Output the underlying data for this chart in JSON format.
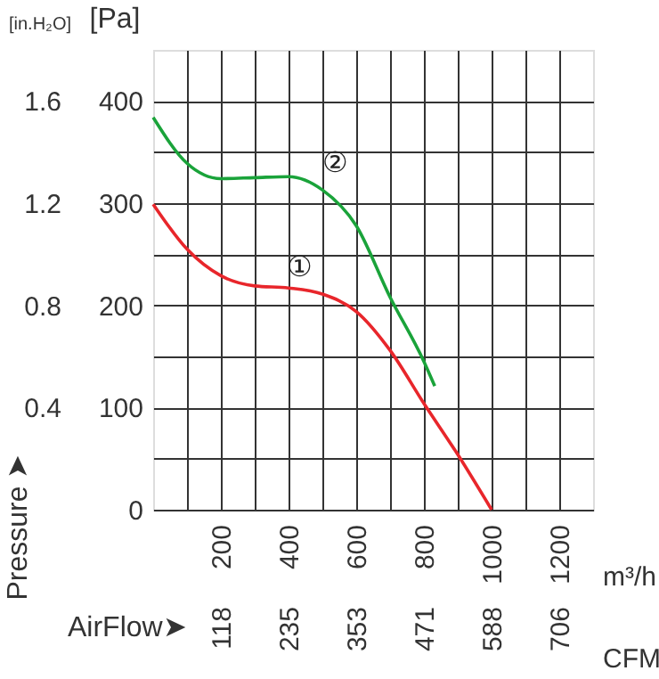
{
  "chart_data": {
    "type": "line",
    "xlabel": "m³/h",
    "ylabel": "[Pa]",
    "y2label": "[in.H₂O]",
    "x2label": "CFM",
    "x": [
      0,
      100,
      200,
      300,
      400,
      500,
      600,
      700,
      800,
      900,
      1000
    ],
    "series": [
      {
        "name": "①",
        "color": "#e8262b",
        "values": [
          299,
          255,
          229,
          219,
          217,
          211,
          194,
          156,
          104,
          54,
          0
        ]
      },
      {
        "name": "②",
        "color": "#1aa33a",
        "x": [
          0,
          100,
          200,
          300,
          400,
          500,
          600,
          700,
          800,
          832
        ],
        "values": [
          384,
          339,
          324,
          325,
          326,
          313,
          278,
          208,
          145,
          121
        ]
      }
    ],
    "xlim": [
      0,
      1300
    ],
    "ylim": [
      0,
      450
    ],
    "y2lim": [
      0,
      1.8
    ],
    "x2lim": [
      0,
      765
    ],
    "xticks": [
      {
        "value": 100,
        "label": null
      },
      200,
      {
        "value": 300,
        "label": null
      },
      400,
      {
        "value": 500,
        "label": null
      },
      600,
      {
        "value": 700,
        "label": null
      },
      800,
      {
        "value": 900,
        "label": null
      },
      1000,
      {
        "value": 1100,
        "label": null
      },
      1200
    ],
    "yticks": [
      0,
      {
        "value": 50,
        "label": null
      },
      100,
      {
        "value": 150,
        "label": null
      },
      200,
      {
        "value": 250,
        "label": null
      },
      300,
      {
        "value": 350,
        "label": null
      },
      400
    ],
    "y2ticks": [
      0.4,
      0.8,
      1.2,
      1.6
    ],
    "x2ticks": [
      118,
      235,
      353,
      471,
      588,
      706
    ],
    "grid": true,
    "legend": false,
    "marker": "none",
    "line_style": "solid",
    "annotations": [
      "Pressure ➤",
      "AirFlow➤"
    ]
  }
}
